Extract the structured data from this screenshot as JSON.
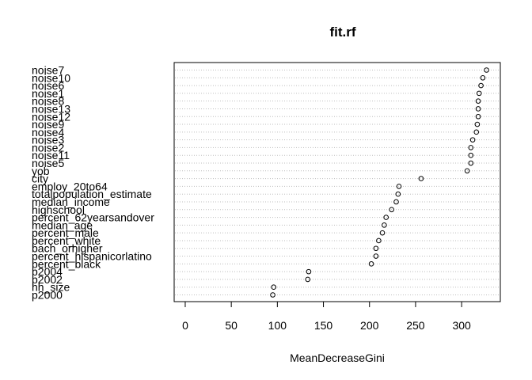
{
  "chart_data": {
    "type": "scatter",
    "title": "fit.rf",
    "xlabel": "MeanDecreaseGini",
    "ylabel": "",
    "xlim": [
      -12,
      342
    ],
    "xticks": [
      0,
      50,
      100,
      150,
      200,
      250,
      300
    ],
    "grid": "dotted horizontal guide lines",
    "legend": "none",
    "colors": {
      "points": "#000000",
      "guides": "#bebebe",
      "frame": "#000000"
    },
    "categories": [
      "noise7",
      "noise10",
      "noise6",
      "noise1",
      "noise8",
      "noise13",
      "noise12",
      "noise9",
      "noise4",
      "noise3",
      "noise2",
      "noise11",
      "noise5",
      "yob",
      "city",
      "employ_20to64",
      "totalpopulation_estimate",
      "median_income",
      "highschool",
      "percent_62yearsandover",
      "median_age",
      "percent_male",
      "percent_white",
      "bach_orhigher",
      "percent_hispanicorlatino",
      "percent_black",
      "p2004",
      "p2002",
      "hh_size",
      "p2000"
    ],
    "values": [
      327,
      323,
      321,
      319,
      318,
      318,
      318,
      317,
      316,
      312,
      310,
      310,
      310,
      306,
      256,
      232,
      231,
      229,
      224,
      218,
      216,
      214,
      210,
      207,
      207,
      202,
      134,
      133,
      96,
      95
    ]
  }
}
